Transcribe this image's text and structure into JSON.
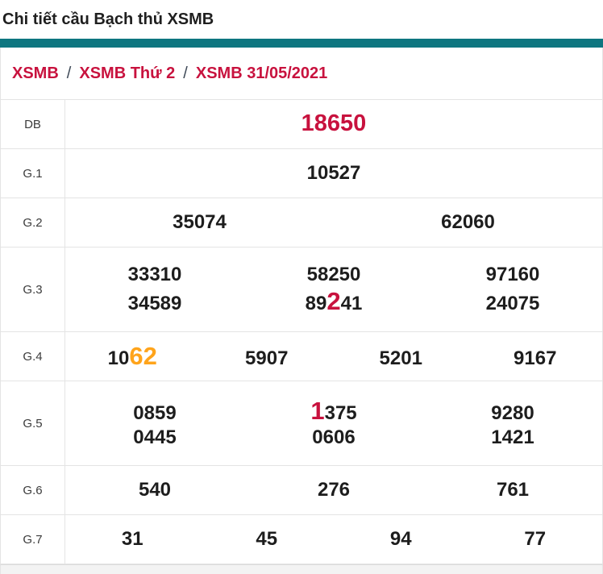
{
  "page": {
    "title": "Chi tiết cầu Bạch thủ XSMB"
  },
  "breadcrumb": {
    "separator": "/",
    "items": [
      "XSMB",
      "XSMB Thứ 2",
      "XSMB 31/05/2021"
    ]
  },
  "colors": {
    "accent_teal": "#0e7680",
    "accent_red": "#c8123e",
    "accent_orange": "#ffa41b",
    "border": "#e4e4e4",
    "text_dark": "#1d1d1d",
    "footer_grey": "#f3f3f3"
  },
  "results": {
    "rows": [
      {
        "label": "DB",
        "lines": [
          [
            [
              {
                "text": "18650",
                "highlight": "red"
              }
            ]
          ]
        ]
      },
      {
        "label": "G.1",
        "lines": [
          [
            [
              {
                "text": "10527"
              }
            ]
          ]
        ]
      },
      {
        "label": "G.2",
        "lines": [
          [
            [
              {
                "text": "35074"
              }
            ],
            [
              {
                "text": "62060"
              }
            ]
          ]
        ]
      },
      {
        "label": "G.3",
        "lines": [
          [
            [
              {
                "text": "33310"
              }
            ],
            [
              {
                "text": "58250"
              }
            ],
            [
              {
                "text": "97160"
              }
            ]
          ],
          [
            [
              {
                "text": "34589"
              }
            ],
            [
              {
                "text": "89"
              },
              {
                "text": "2",
                "highlight": "red"
              },
              {
                "text": "41"
              }
            ],
            [
              {
                "text": "24075"
              }
            ]
          ]
        ]
      },
      {
        "label": "G.4",
        "lines": [
          [
            [
              {
                "text": "10"
              },
              {
                "text": "62",
                "highlight": "orange"
              }
            ],
            [
              {
                "text": "5907"
              }
            ],
            [
              {
                "text": "5201"
              }
            ],
            [
              {
                "text": "9167"
              }
            ]
          ]
        ]
      },
      {
        "label": "G.5",
        "lines": [
          [
            [
              {
                "text": "0859"
              }
            ],
            [
              {
                "text": "1",
                "highlight": "red"
              },
              {
                "text": "375"
              }
            ],
            [
              {
                "text": "9280"
              }
            ]
          ],
          [
            [
              {
                "text": "0445"
              }
            ],
            [
              {
                "text": "0606"
              }
            ],
            [
              {
                "text": "1421"
              }
            ]
          ]
        ]
      },
      {
        "label": "G.6",
        "lines": [
          [
            [
              {
                "text": "540"
              }
            ],
            [
              {
                "text": "276"
              }
            ],
            [
              {
                "text": "761"
              }
            ]
          ]
        ]
      },
      {
        "label": "G.7",
        "lines": [
          [
            [
              {
                "text": "31"
              }
            ],
            [
              {
                "text": "45"
              }
            ],
            [
              {
                "text": "94"
              }
            ],
            [
              {
                "text": "77"
              }
            ]
          ]
        ]
      }
    ]
  }
}
